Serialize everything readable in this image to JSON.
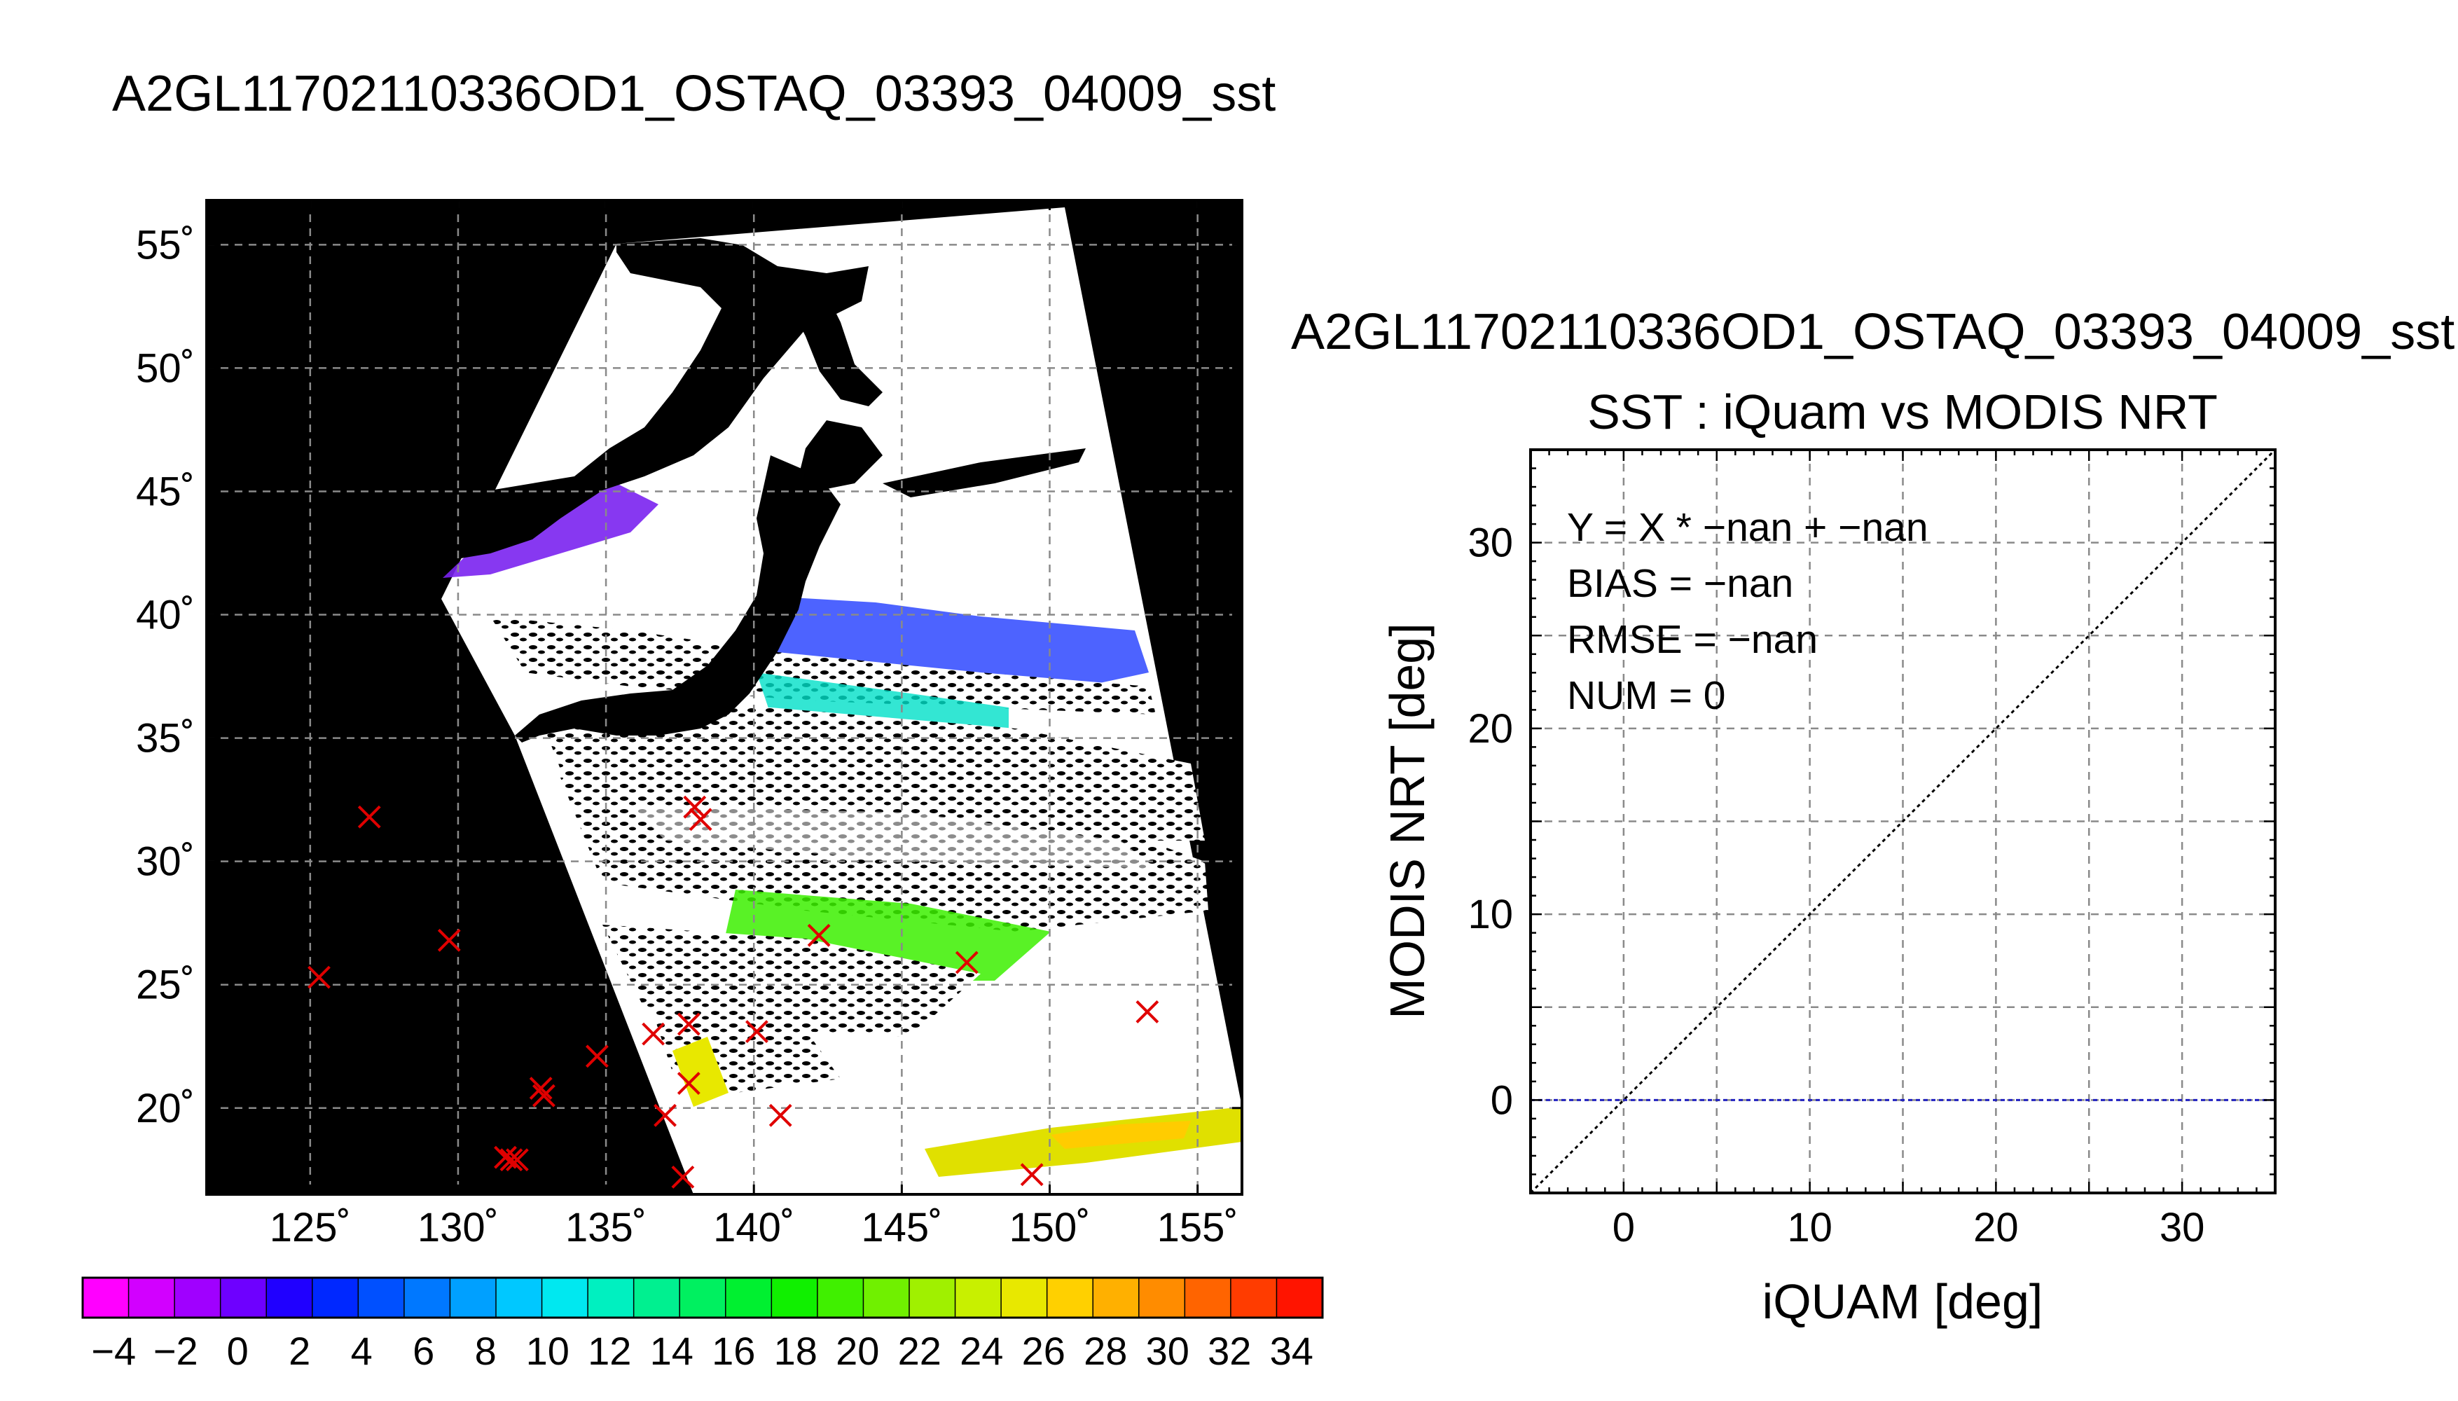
{
  "page_title": "A2GL11702110336OD1_OSTAQ_03393_04009_sst",
  "chart_data": [
    {
      "type": "map",
      "title": "A2GL11702110336OD1_OSTAQ_03393_04009_sst",
      "lon_range": [
        121.5,
        156.5
      ],
      "lat_range": [
        16.5,
        56.8
      ],
      "lon_ticks": [
        125,
        130,
        135,
        140,
        145,
        150,
        155
      ],
      "lat_ticks": [
        20,
        25,
        30,
        35,
        40,
        45,
        50,
        55
      ],
      "lon_tick_labels": [
        "125˚",
        "130˚",
        "135˚",
        "140˚",
        "145˚",
        "150˚",
        "155˚"
      ],
      "lat_tick_labels": [
        "20˚",
        "25˚",
        "30˚",
        "35˚",
        "40˚",
        "45˚",
        "50˚",
        "55˚"
      ],
      "grid": true,
      "markers": {
        "symbol": "x",
        "color": "#e00000",
        "points": [
          {
            "lon": 127.0,
            "lat": 31.8
          },
          {
            "lon": 125.3,
            "lat": 25.3
          },
          {
            "lon": 129.7,
            "lat": 26.8
          },
          {
            "lon": 131.6,
            "lat": 18.0
          },
          {
            "lon": 131.8,
            "lat": 17.9
          },
          {
            "lon": 132.0,
            "lat": 17.9
          },
          {
            "lon": 132.8,
            "lat": 20.8
          },
          {
            "lon": 132.9,
            "lat": 20.5
          },
          {
            "lon": 134.7,
            "lat": 22.1
          },
          {
            "lon": 136.6,
            "lat": 23.0
          },
          {
            "lon": 137.0,
            "lat": 19.7
          },
          {
            "lon": 137.6,
            "lat": 17.2
          },
          {
            "lon": 137.8,
            "lat": 21.0
          },
          {
            "lon": 137.8,
            "lat": 23.4
          },
          {
            "lon": 138.0,
            "lat": 32.2
          },
          {
            "lon": 138.2,
            "lat": 31.7
          },
          {
            "lon": 140.1,
            "lat": 23.1
          },
          {
            "lon": 140.9,
            "lat": 19.7
          },
          {
            "lon": 142.2,
            "lat": 27.0
          },
          {
            "lon": 147.2,
            "lat": 25.9
          },
          {
            "lon": 149.4,
            "lat": 17.3
          },
          {
            "lon": 153.3,
            "lat": 23.9
          }
        ]
      },
      "colorbar": {
        "range": [
          -5,
          35
        ],
        "labels": [
          "−4",
          "−2",
          "0",
          "2",
          "4",
          "6",
          "8",
          "10",
          "12",
          "14",
          "16",
          "18",
          "20",
          "22",
          "24",
          "26",
          "28",
          "30",
          "32",
          "34"
        ],
        "label_values": [
          -4,
          -2,
          0,
          2,
          4,
          6,
          8,
          10,
          12,
          14,
          16,
          18,
          20,
          22,
          24,
          26,
          28,
          30,
          32,
          34
        ],
        "colors": [
          "#ff00ff",
          "#d200ff",
          "#a000ff",
          "#6e00ff",
          "#2000ff",
          "#0028ff",
          "#0050ff",
          "#0078ff",
          "#00a0ff",
          "#00c8ff",
          "#00e8f0",
          "#00f0c0",
          "#00f090",
          "#00f060",
          "#00f030",
          "#10f000",
          "#40f000",
          "#70f000",
          "#a0f000",
          "#c8f000",
          "#e8e800",
          "#ffd000",
          "#ffb000",
          "#ff8c00",
          "#ff6400",
          "#ff3c00",
          "#ff1400"
        ]
      }
    },
    {
      "type": "scatter",
      "header": "A2GL11702110336OD1_OSTAQ_03393_04009_sst",
      "title": "SST : iQuam vs MODIS NRT",
      "xlabel": "iQUAM [deg]",
      "ylabel": "MODIS NRT [deg]",
      "xlim": [
        -5,
        35
      ],
      "ylim": [
        -5,
        35
      ],
      "x_ticks": [
        0,
        10,
        20,
        30
      ],
      "y_ticks": [
        0,
        10,
        20,
        30
      ],
      "x_tick_labels": [
        "0",
        "10",
        "20",
        "30"
      ],
      "y_tick_labels": [
        "0",
        "10",
        "20",
        "30"
      ],
      "grid": true,
      "grid_step": 5,
      "reference_line": {
        "x": [
          -5,
          35
        ],
        "y": [
          -5,
          35
        ],
        "color": "#000000",
        "style": "dotted"
      },
      "fit_line": {
        "y": 0,
        "color": "#2020c0",
        "style": "dashed"
      },
      "series": [
        {
          "x": [],
          "y": []
        }
      ],
      "stats": [
        "Y = X * −nan + −nan",
        "BIAS = −nan",
        "RMSE = −nan",
        "NUM = 0"
      ]
    }
  ]
}
